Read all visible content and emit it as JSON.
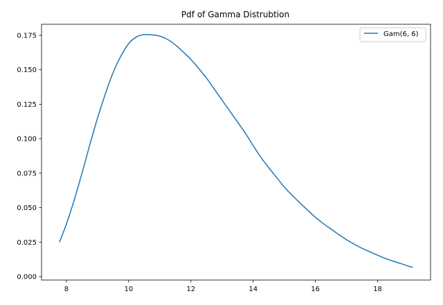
{
  "chart_data": {
    "type": "line",
    "title": "Pdf of Gamma Distrubtion",
    "xlabel": "",
    "ylabel": "",
    "xlim": [
      7.2,
      19.7
    ],
    "ylim": [
      -0.0025,
      0.183
    ],
    "x_ticks": [
      8,
      10,
      12,
      14,
      16,
      18
    ],
    "y_ticks": [
      0.0,
      0.025,
      0.05,
      0.075,
      0.1,
      0.125,
      0.15,
      0.175
    ],
    "x_tick_labels": [
      "8",
      "10",
      "12",
      "14",
      "16",
      "18"
    ],
    "y_tick_labels": [
      "0.000",
      "0.025",
      "0.050",
      "0.075",
      "0.100",
      "0.125",
      "0.150",
      "0.175"
    ],
    "grid": false,
    "legend_position": "top-right",
    "series": [
      {
        "name": "Gam(6, 6)",
        "color": "#1f77b4",
        "x": [
          7.78,
          8.0,
          8.25,
          8.5,
          8.75,
          9.0,
          9.25,
          9.5,
          9.75,
          10.0,
          10.25,
          10.5,
          10.75,
          11.0,
          11.25,
          11.5,
          11.75,
          12.0,
          12.25,
          12.5,
          12.75,
          13.0,
          13.25,
          13.5,
          13.75,
          14.0,
          14.25,
          14.5,
          14.75,
          15.0,
          15.25,
          15.5,
          15.75,
          16.0,
          16.25,
          16.5,
          16.75,
          17.0,
          17.25,
          17.5,
          17.75,
          18.0,
          18.25,
          18.5,
          18.75,
          19.0,
          19.12
        ],
        "y": [
          0.0252,
          0.0382,
          0.0555,
          0.075,
          0.0955,
          0.115,
          0.1325,
          0.148,
          0.16,
          0.169,
          0.1738,
          0.1755,
          0.1753,
          0.1744,
          0.172,
          0.168,
          0.163,
          0.1575,
          0.151,
          0.144,
          0.136,
          0.128,
          0.12,
          0.112,
          0.104,
          0.095,
          0.0865,
          0.079,
          0.072,
          0.065,
          0.059,
          0.0535,
          0.0482,
          0.043,
          0.0385,
          0.0345,
          0.0305,
          0.0268,
          0.0235,
          0.0205,
          0.018,
          0.0155,
          0.0132,
          0.0112,
          0.0094,
          0.0075,
          0.0068
        ]
      }
    ]
  }
}
